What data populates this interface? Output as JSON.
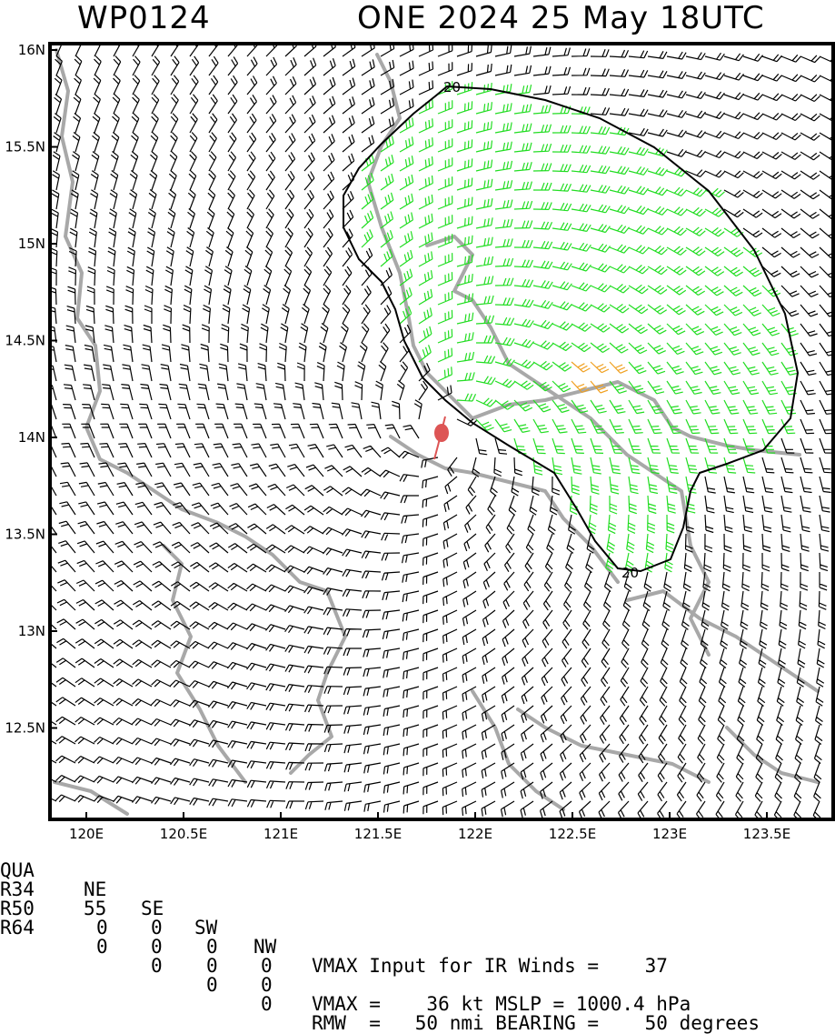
{
  "header": {
    "storm_id": "WP0124",
    "storm_info": "ONE 2024 25 May 18UTC"
  },
  "map": {
    "lat_labels": [
      "16N",
      "15.5N",
      "15N",
      "14.5N",
      "14N",
      "13.5N",
      "13N",
      "12.5N"
    ],
    "lon_labels": [
      "120E",
      "120.5E",
      "121E",
      "121.5E",
      "122E",
      "122.5E",
      "123E",
      "123.5E"
    ],
    "contour_labels": [
      "20",
      "20"
    ],
    "center": {
      "lon": 121.83,
      "lat": 14.02
    },
    "colors": {
      "barb_default": "#000000",
      "barb_34kt": "#22dd22",
      "barb_50kt": "#f0a020",
      "coast": "#a8a8a8",
      "center_marker": "#dd5555",
      "contour": "#000000"
    }
  },
  "info": {
    "quad_header": [
      "QUA",
      "NE",
      "SE",
      "SW",
      "NW"
    ],
    "vmax_input": "VMAX Input for IR Winds =    37",
    "r34": [
      "R34",
      "55",
      "0",
      "0",
      "0"
    ],
    "r50": [
      "R50",
      "0",
      "0",
      "0",
      "0"
    ],
    "r64": [
      "R64",
      "0",
      "0",
      "0",
      "0"
    ],
    "vmax_line": "VMAX =    36 kt MSLP = 1000.4 hPa",
    "rmw_line": "RMW  =   50 nmi BEARING =    50 degrees"
  }
}
